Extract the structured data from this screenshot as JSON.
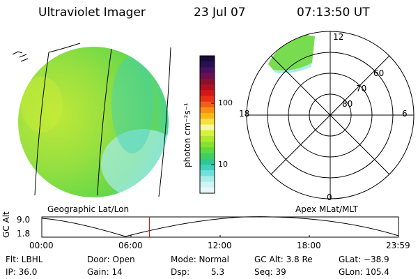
{
  "header": {
    "title": "Ultraviolet Imager",
    "date": "23 Jul 07",
    "time": "07:13:50 UT"
  },
  "colorbar": {
    "label": "photon cm⁻²s⁻¹",
    "ticks": [
      "100",
      "10"
    ],
    "colors": [
      "#1a0a3a",
      "#2a1050",
      "#4a1060",
      "#6a1050",
      "#8a1030",
      "#b01020",
      "#d01818",
      "#e83018",
      "#f06018",
      "#f89018",
      "#f8b818",
      "#f8e040",
      "#f8f8a0",
      "#d8f040",
      "#b0e830",
      "#88e030",
      "#60d840",
      "#40d060",
      "#30c890",
      "#40d0c0",
      "#70e0d8",
      "#a8ece8",
      "#d0f4f4",
      "#e8f8f8"
    ]
  },
  "map_left": {
    "name": "Geographic Lat/Lon",
    "colors": {
      "green": "#90e040",
      "yellowgreen": "#c0e838",
      "cyan": "#40d0c0",
      "lightcyan": "#a8ecec"
    }
  },
  "map_right": {
    "name": "Apex MLat/MLT",
    "mlt_labels": {
      "top": "12",
      "left": "18",
      "right": "6",
      "bottom": "0"
    },
    "lat_labels": [
      "60",
      "70",
      "80"
    ]
  },
  "altitude_plot": {
    "ylabel": "GC Alt",
    "yticks": [
      "9.0",
      "1.8"
    ],
    "xticks": [
      "00:00",
      "06:00",
      "12:00",
      "18:00",
      "23:59"
    ],
    "current_time_fraction": 0.302,
    "marker_color": "#e00000"
  },
  "info": {
    "rows": [
      [
        "Flt: LBHL",
        "Door: Open",
        "Mode: Normal",
        "GC Alt: 3.8 Re",
        "GLat: −38.9"
      ],
      [
        "IP: 36.0",
        "Gain: 14",
        "Dsp:",
        "Seq: 39",
        "GLon: 105.4"
      ]
    ],
    "dsp_value": "5.3"
  }
}
